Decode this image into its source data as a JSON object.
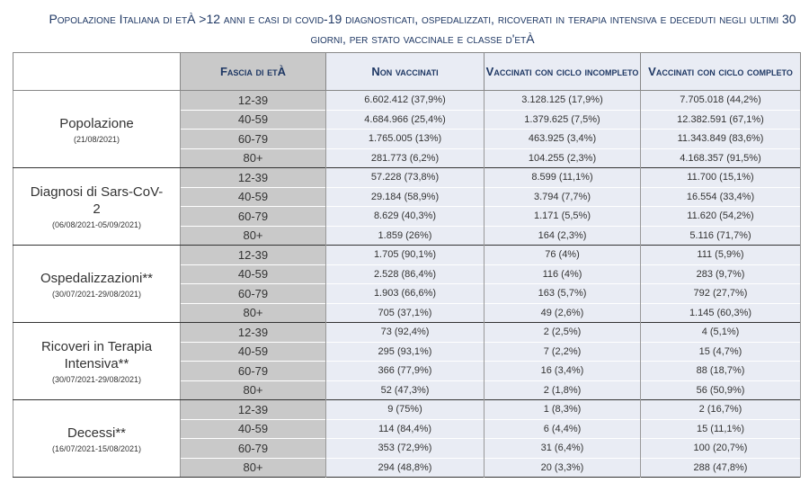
{
  "header": {
    "title": "Popolazione Italiana di etÀ >12 anni e casi di covid-19 diagnosticati, ospedalizzati, ricoverati in terapia intensiva e deceduti negli ultimi 30 giorni, per stato vaccinale e classe d'etÀ"
  },
  "table": {
    "columns": [
      "Fascia di etÀ",
      "Non vaccinati",
      "Vaccinati con ciclo incompleto",
      "Vaccinati con ciclo completo"
    ],
    "groups": [
      {
        "label": "Popolazione",
        "date": "(21/08/2021)",
        "rows": [
          [
            "12-39",
            "6.602.412 (37,9%)",
            "3.128.125 (17,9%)",
            "7.705.018 (44,2%)"
          ],
          [
            "40-59",
            "4.684.966 (25,4%)",
            "1.379.625 (7,5%)",
            "12.382.591 (67,1%)"
          ],
          [
            "60-79",
            "1.765.005 (13%)",
            "463.925 (3,4%)",
            "11.343.849 (83,6%)"
          ],
          [
            "80+",
            "281.773 (6,2%)",
            "104.255 (2,3%)",
            "4.168.357 (91,5%)"
          ]
        ]
      },
      {
        "label": "Diagnosi di Sars-CoV-2",
        "date": "(06/08/2021-05/09/2021)",
        "rows": [
          [
            "12-39",
            "57.228 (73,8%)",
            "8.599 (11,1%)",
            "11.700 (15,1%)"
          ],
          [
            "40-59",
            "29.184 (58,9%)",
            "3.794 (7,7%)",
            "16.554 (33,4%)"
          ],
          [
            "60-79",
            "8.629 (40,3%)",
            "1.171 (5,5%)",
            "11.620 (54,2%)"
          ],
          [
            "80+",
            "1.859 (26%)",
            "164 (2,3%)",
            "5.116 (71,7%)"
          ]
        ]
      },
      {
        "label": "Ospedalizzazioni**",
        "date": "(30/07/2021-29/08/2021)",
        "rows": [
          [
            "12-39",
            "1.705 (90,1%)",
            "76 (4%)",
            "111 (5,9%)"
          ],
          [
            "40-59",
            "2.528 (86,4%)",
            "116 (4%)",
            "283 (9,7%)"
          ],
          [
            "60-79",
            "1.903 (66,6%)",
            "163 (5,7%)",
            "792 (27,7%)"
          ],
          [
            "80+",
            "705 (37,1%)",
            "49 (2,6%)",
            "1.145 (60,3%)"
          ]
        ]
      },
      {
        "label": "Ricoveri in Terapia Intensiva**",
        "date": "(30/07/2021-29/08/2021)",
        "rows": [
          [
            "12-39",
            "73 (92,4%)",
            "2 (2,5%)",
            "4 (5,1%)"
          ],
          [
            "40-59",
            "295 (93,1%)",
            "7 (2,2%)",
            "15 (4,7%)"
          ],
          [
            "60-79",
            "366 (77,9%)",
            "16 (3,4%)",
            "88 (18,7%)"
          ],
          [
            "80+",
            "52 (47,3%)",
            "2 (1,8%)",
            "56 (50,9%)"
          ]
        ]
      },
      {
        "label": "Decessi**",
        "date": "(16/07/2021-15/08/2021)",
        "rows": [
          [
            "12-39",
            "9 (75%)",
            "1 (8,3%)",
            "2 (16,7%)"
          ],
          [
            "40-59",
            "114 (84,4%)",
            "6 (4,4%)",
            "15 (11,1%)"
          ],
          [
            "60-79",
            "353 (72,9%)",
            "31 (6,4%)",
            "100 (20,7%)"
          ],
          [
            "80+",
            "294 (48,8%)",
            "20 (3,3%)",
            "288 (47,8%)"
          ]
        ]
      }
    ]
  }
}
